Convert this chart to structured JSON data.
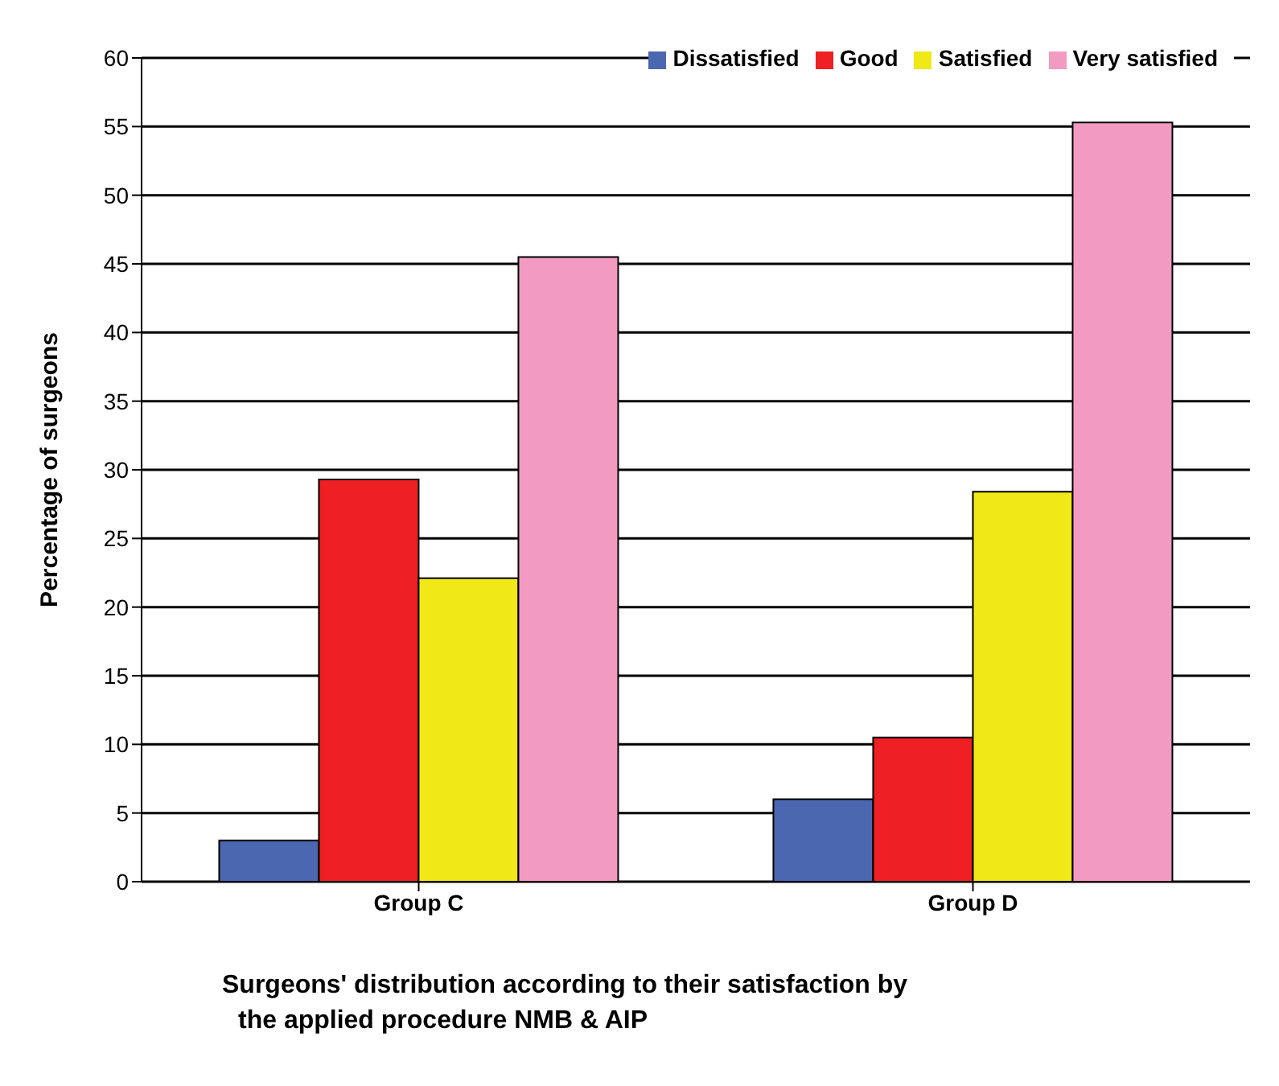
{
  "chart_data": {
    "type": "bar",
    "xlabel": "Surgeons' distribution according to their satisfaction by the applied procedure NMB & AIP",
    "ylabel": "Percentage of surgeons",
    "categories": [
      "Group C",
      "Group D"
    ],
    "series": [
      {
        "name": "Dissatisfied",
        "color": "#4a67b0",
        "values": [
          3.0,
          6.0
        ]
      },
      {
        "name": "Good",
        "color": "#ee2024",
        "values": [
          29.3,
          10.5
        ]
      },
      {
        "name": "Satisfied",
        "color": "#f0e817",
        "values": [
          22.1,
          28.4
        ]
      },
      {
        "name": "Very satisfied",
        "color": "#f29ac2",
        "values": [
          45.5,
          55.3
        ]
      }
    ],
    "ylim": [
      0,
      60
    ],
    "yticks": [
      0,
      5,
      10,
      15,
      20,
      25,
      30,
      35,
      40,
      45,
      50,
      55,
      60
    ],
    "grid": "y",
    "legend": "top right"
  }
}
